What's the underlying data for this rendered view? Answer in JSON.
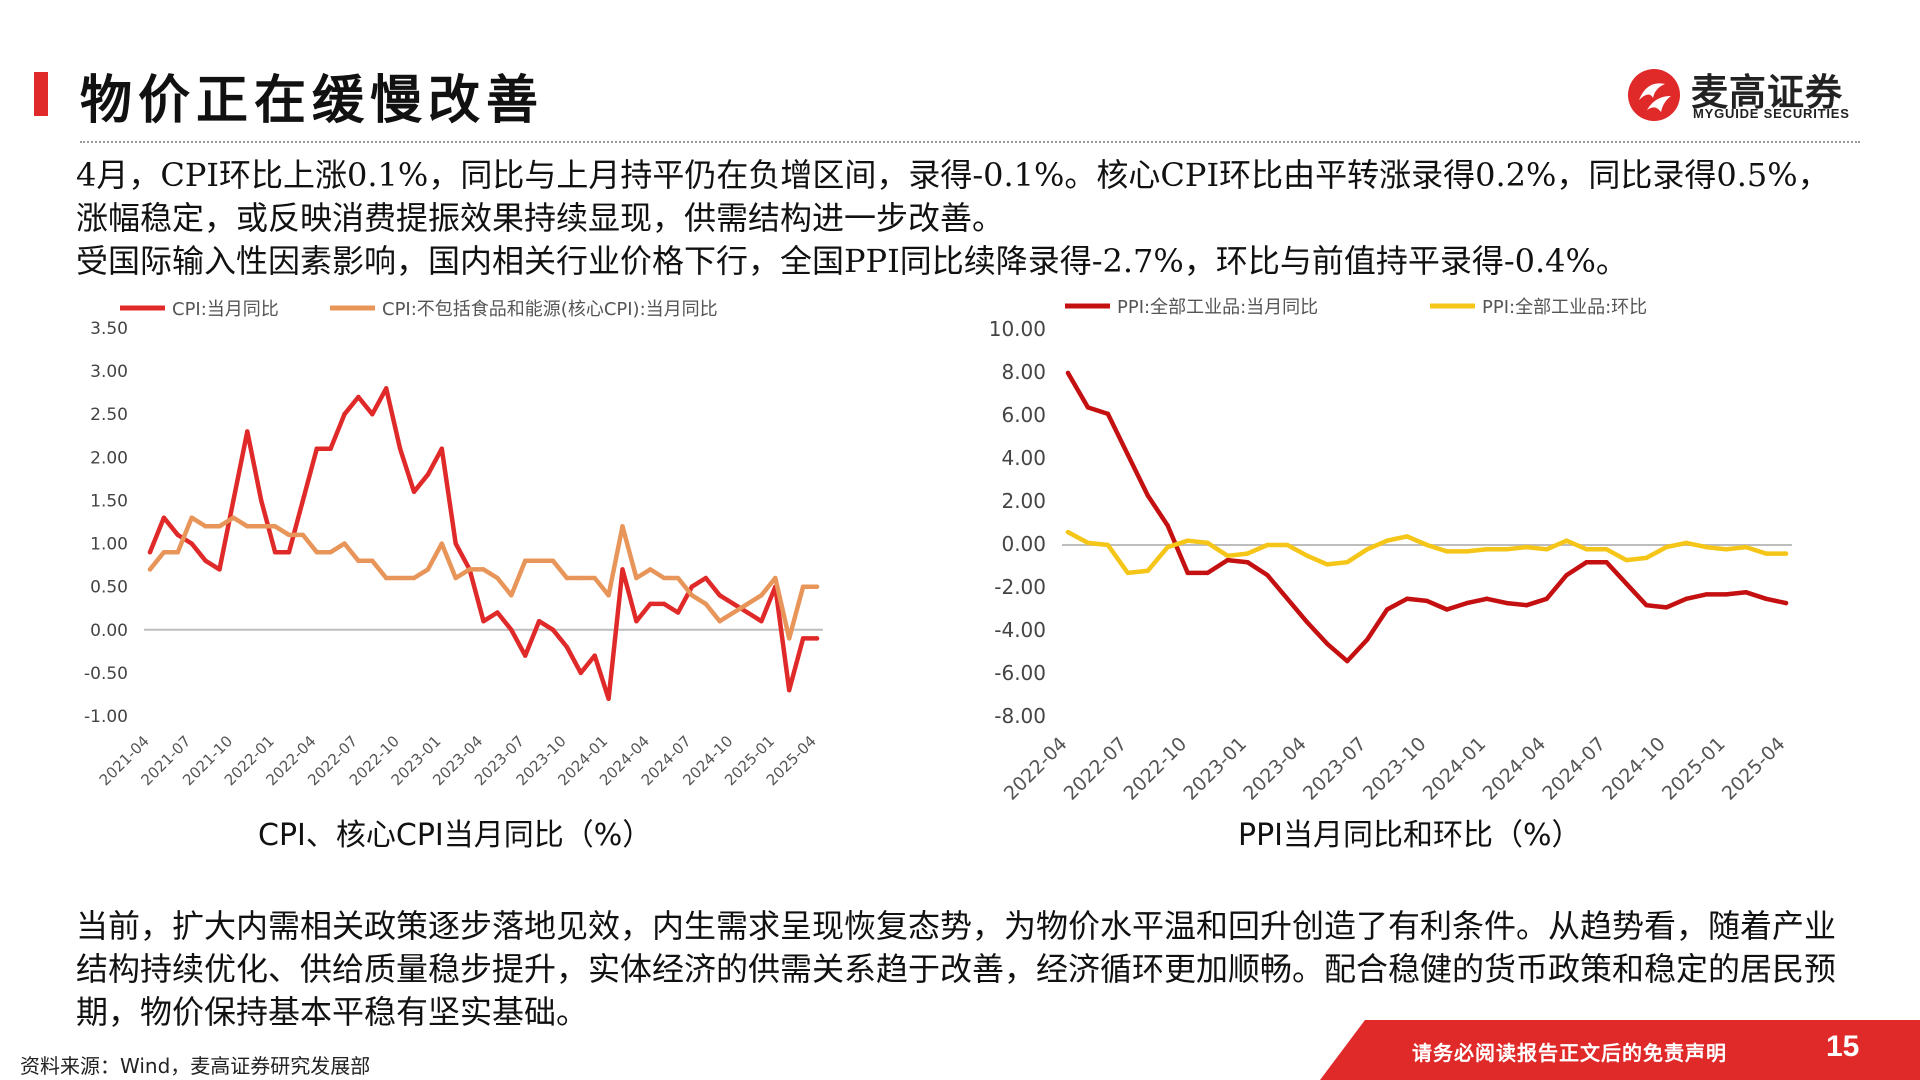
{
  "header": {
    "title": "物价正在缓慢改善",
    "logo_cn": "麦高证券",
    "logo_en": "MYGUIDE SECURITIES"
  },
  "paragraphs": {
    "p1": "4月，CPI环比上涨0.1%，同比与上月持平仍在负增区间，录得-0.1%。核心CPI环比由平转涨录得0.2%，同比录得0.5%，涨幅稳定，或反映消费提振效果持续显现，供需结构进一步改善。",
    "p2": "受国际输入性因素影响，国内相关行业价格下行，全国PPI同比续降录得-2.7%，环比与前值持平录得-0.4%。",
    "p3": "当前，扩大内需相关政策逐步落地见效，内生需求呈现恢复态势，为物价水平温和回升创造了有利条件。从趋势看，随着产业结构持续优化、供给质量稳步提升，实体经济的供需关系趋于改善，经济循环更加顺畅。配合稳健的货币政策和稳定的居民预期，物价保持基本平稳有坚实基础。"
  },
  "captions": {
    "left": "CPI、核心CPI当月同比（%）",
    "right": "PPI当月同比和环比（%）"
  },
  "footer": {
    "source": "资料来源：Wind，麦高证券研究发展部",
    "disclaimer": "请务必阅读报告正文后的免责声明",
    "page": "15"
  },
  "colors": {
    "brand_red": "#e02a2a",
    "cpi": "#e02a2a",
    "core_cpi": "#e8955a",
    "ppi_yoy": "#c41010",
    "ppi_mom": "#f5c518"
  },
  "chart_data": [
    {
      "type": "line",
      "title": "CPI、核心CPI当月同比（%）",
      "legend_position": "top",
      "grid": false,
      "ylim": [
        -1.0,
        3.5
      ],
      "yticks": [
        -1.0,
        -0.5,
        0.0,
        0.5,
        1.0,
        1.5,
        2.0,
        2.5,
        3.0,
        3.5
      ],
      "ytick_labels": [
        "-1.00",
        "-0.50",
        "0.00",
        "0.50",
        "1.00",
        "1.50",
        "2.00",
        "2.50",
        "3.00",
        "3.50"
      ],
      "x": [
        "2021-04",
        "2021-05",
        "2021-06",
        "2021-07",
        "2021-08",
        "2021-09",
        "2021-10",
        "2021-11",
        "2021-12",
        "2022-01",
        "2022-02",
        "2022-03",
        "2022-04",
        "2022-05",
        "2022-06",
        "2022-07",
        "2022-08",
        "2022-09",
        "2022-10",
        "2022-11",
        "2022-12",
        "2023-01",
        "2023-02",
        "2023-03",
        "2023-04",
        "2023-05",
        "2023-06",
        "2023-07",
        "2023-08",
        "2023-09",
        "2023-10",
        "2023-11",
        "2023-12",
        "2024-01",
        "2024-02",
        "2024-03",
        "2024-04",
        "2024-05",
        "2024-06",
        "2024-07",
        "2024-08",
        "2024-09",
        "2024-10",
        "2024-11",
        "2024-12",
        "2025-01",
        "2025-02",
        "2025-03",
        "2025-04"
      ],
      "xtick_labels": [
        "2021-04",
        "2021-07",
        "2021-10",
        "2022-01",
        "2022-04",
        "2022-07",
        "2022-10",
        "2023-01",
        "2023-04",
        "2023-07",
        "2023-10",
        "2024-01",
        "2024-04",
        "2024-07",
        "2024-10",
        "2025-01",
        "2025-04"
      ],
      "series": [
        {
          "name": "CPI:当月同比",
          "values": [
            0.9,
            1.3,
            1.1,
            1.0,
            0.8,
            0.7,
            1.5,
            2.3,
            1.5,
            0.9,
            0.9,
            1.5,
            2.1,
            2.1,
            2.5,
            2.7,
            2.5,
            2.8,
            2.1,
            1.6,
            1.8,
            2.1,
            1.0,
            0.7,
            0.1,
            0.2,
            0.0,
            -0.3,
            0.1,
            0.0,
            -0.2,
            -0.5,
            -0.3,
            -0.8,
            0.7,
            0.1,
            0.3,
            0.3,
            0.2,
            0.5,
            0.6,
            0.4,
            0.3,
            0.2,
            0.1,
            0.5,
            -0.7,
            -0.1,
            -0.1
          ]
        },
        {
          "name": "CPI:不包括食品和能源(核心CPI):当月同比",
          "values": [
            0.7,
            0.9,
            0.9,
            1.3,
            1.2,
            1.2,
            1.3,
            1.2,
            1.2,
            1.2,
            1.1,
            1.1,
            0.9,
            0.9,
            1.0,
            0.8,
            0.8,
            0.6,
            0.6,
            0.6,
            0.7,
            1.0,
            0.6,
            0.7,
            0.7,
            0.6,
            0.4,
            0.8,
            0.8,
            0.8,
            0.6,
            0.6,
            0.6,
            0.4,
            1.2,
            0.6,
            0.7,
            0.6,
            0.6,
            0.4,
            0.3,
            0.1,
            0.2,
            0.3,
            0.4,
            0.6,
            -0.1,
            0.5,
            0.5
          ]
        }
      ]
    },
    {
      "type": "line",
      "title": "PPI当月同比和环比（%）",
      "legend_position": "top",
      "grid": false,
      "ylim": [
        -8.0,
        10.0
      ],
      "yticks": [
        -8.0,
        -6.0,
        -4.0,
        -2.0,
        0.0,
        2.0,
        4.0,
        6.0,
        8.0,
        10.0
      ],
      "ytick_labels": [
        "-8.00",
        "-6.00",
        "-4.00",
        "-2.00",
        "0.00",
        "2.00",
        "4.00",
        "6.00",
        "8.00",
        "10.00"
      ],
      "x": [
        "2022-04",
        "2022-05",
        "2022-06",
        "2022-07",
        "2022-08",
        "2022-09",
        "2022-10",
        "2022-11",
        "2022-12",
        "2023-01",
        "2023-02",
        "2023-03",
        "2023-04",
        "2023-05",
        "2023-06",
        "2023-07",
        "2023-08",
        "2023-09",
        "2023-10",
        "2023-11",
        "2023-12",
        "2024-01",
        "2024-02",
        "2024-03",
        "2024-04",
        "2024-05",
        "2024-06",
        "2024-07",
        "2024-08",
        "2024-09",
        "2024-10",
        "2024-11",
        "2024-12",
        "2025-01",
        "2025-02",
        "2025-03",
        "2025-04"
      ],
      "xtick_labels": [
        "2022-04",
        "2022-07",
        "2022-10",
        "2023-01",
        "2023-04",
        "2023-07",
        "2023-10",
        "2024-01",
        "2024-04",
        "2024-07",
        "2024-10",
        "2025-01",
        "2025-04"
      ],
      "series": [
        {
          "name": "PPI:全部工业品:当月同比",
          "values": [
            8.0,
            6.4,
            6.1,
            4.2,
            2.3,
            0.9,
            -1.3,
            -1.3,
            -0.7,
            -0.8,
            -1.4,
            -2.5,
            -3.6,
            -4.6,
            -5.4,
            -4.4,
            -3.0,
            -2.5,
            -2.6,
            -3.0,
            -2.7,
            -2.5,
            -2.7,
            -2.8,
            -2.5,
            -1.4,
            -0.8,
            -0.8,
            -1.8,
            -2.8,
            -2.9,
            -2.5,
            -2.3,
            -2.3,
            -2.2,
            -2.5,
            -2.7
          ]
        },
        {
          "name": "PPI:全部工业品:环比",
          "values": [
            0.6,
            0.1,
            0.0,
            -1.3,
            -1.2,
            -0.1,
            0.2,
            0.1,
            -0.5,
            -0.4,
            0.0,
            0.0,
            -0.5,
            -0.9,
            -0.8,
            -0.2,
            0.2,
            0.4,
            0.0,
            -0.3,
            -0.3,
            -0.2,
            -0.2,
            -0.1,
            -0.2,
            0.2,
            -0.2,
            -0.2,
            -0.7,
            -0.6,
            -0.1,
            0.1,
            -0.1,
            -0.2,
            -0.1,
            -0.4,
            -0.4
          ]
        }
      ]
    }
  ]
}
